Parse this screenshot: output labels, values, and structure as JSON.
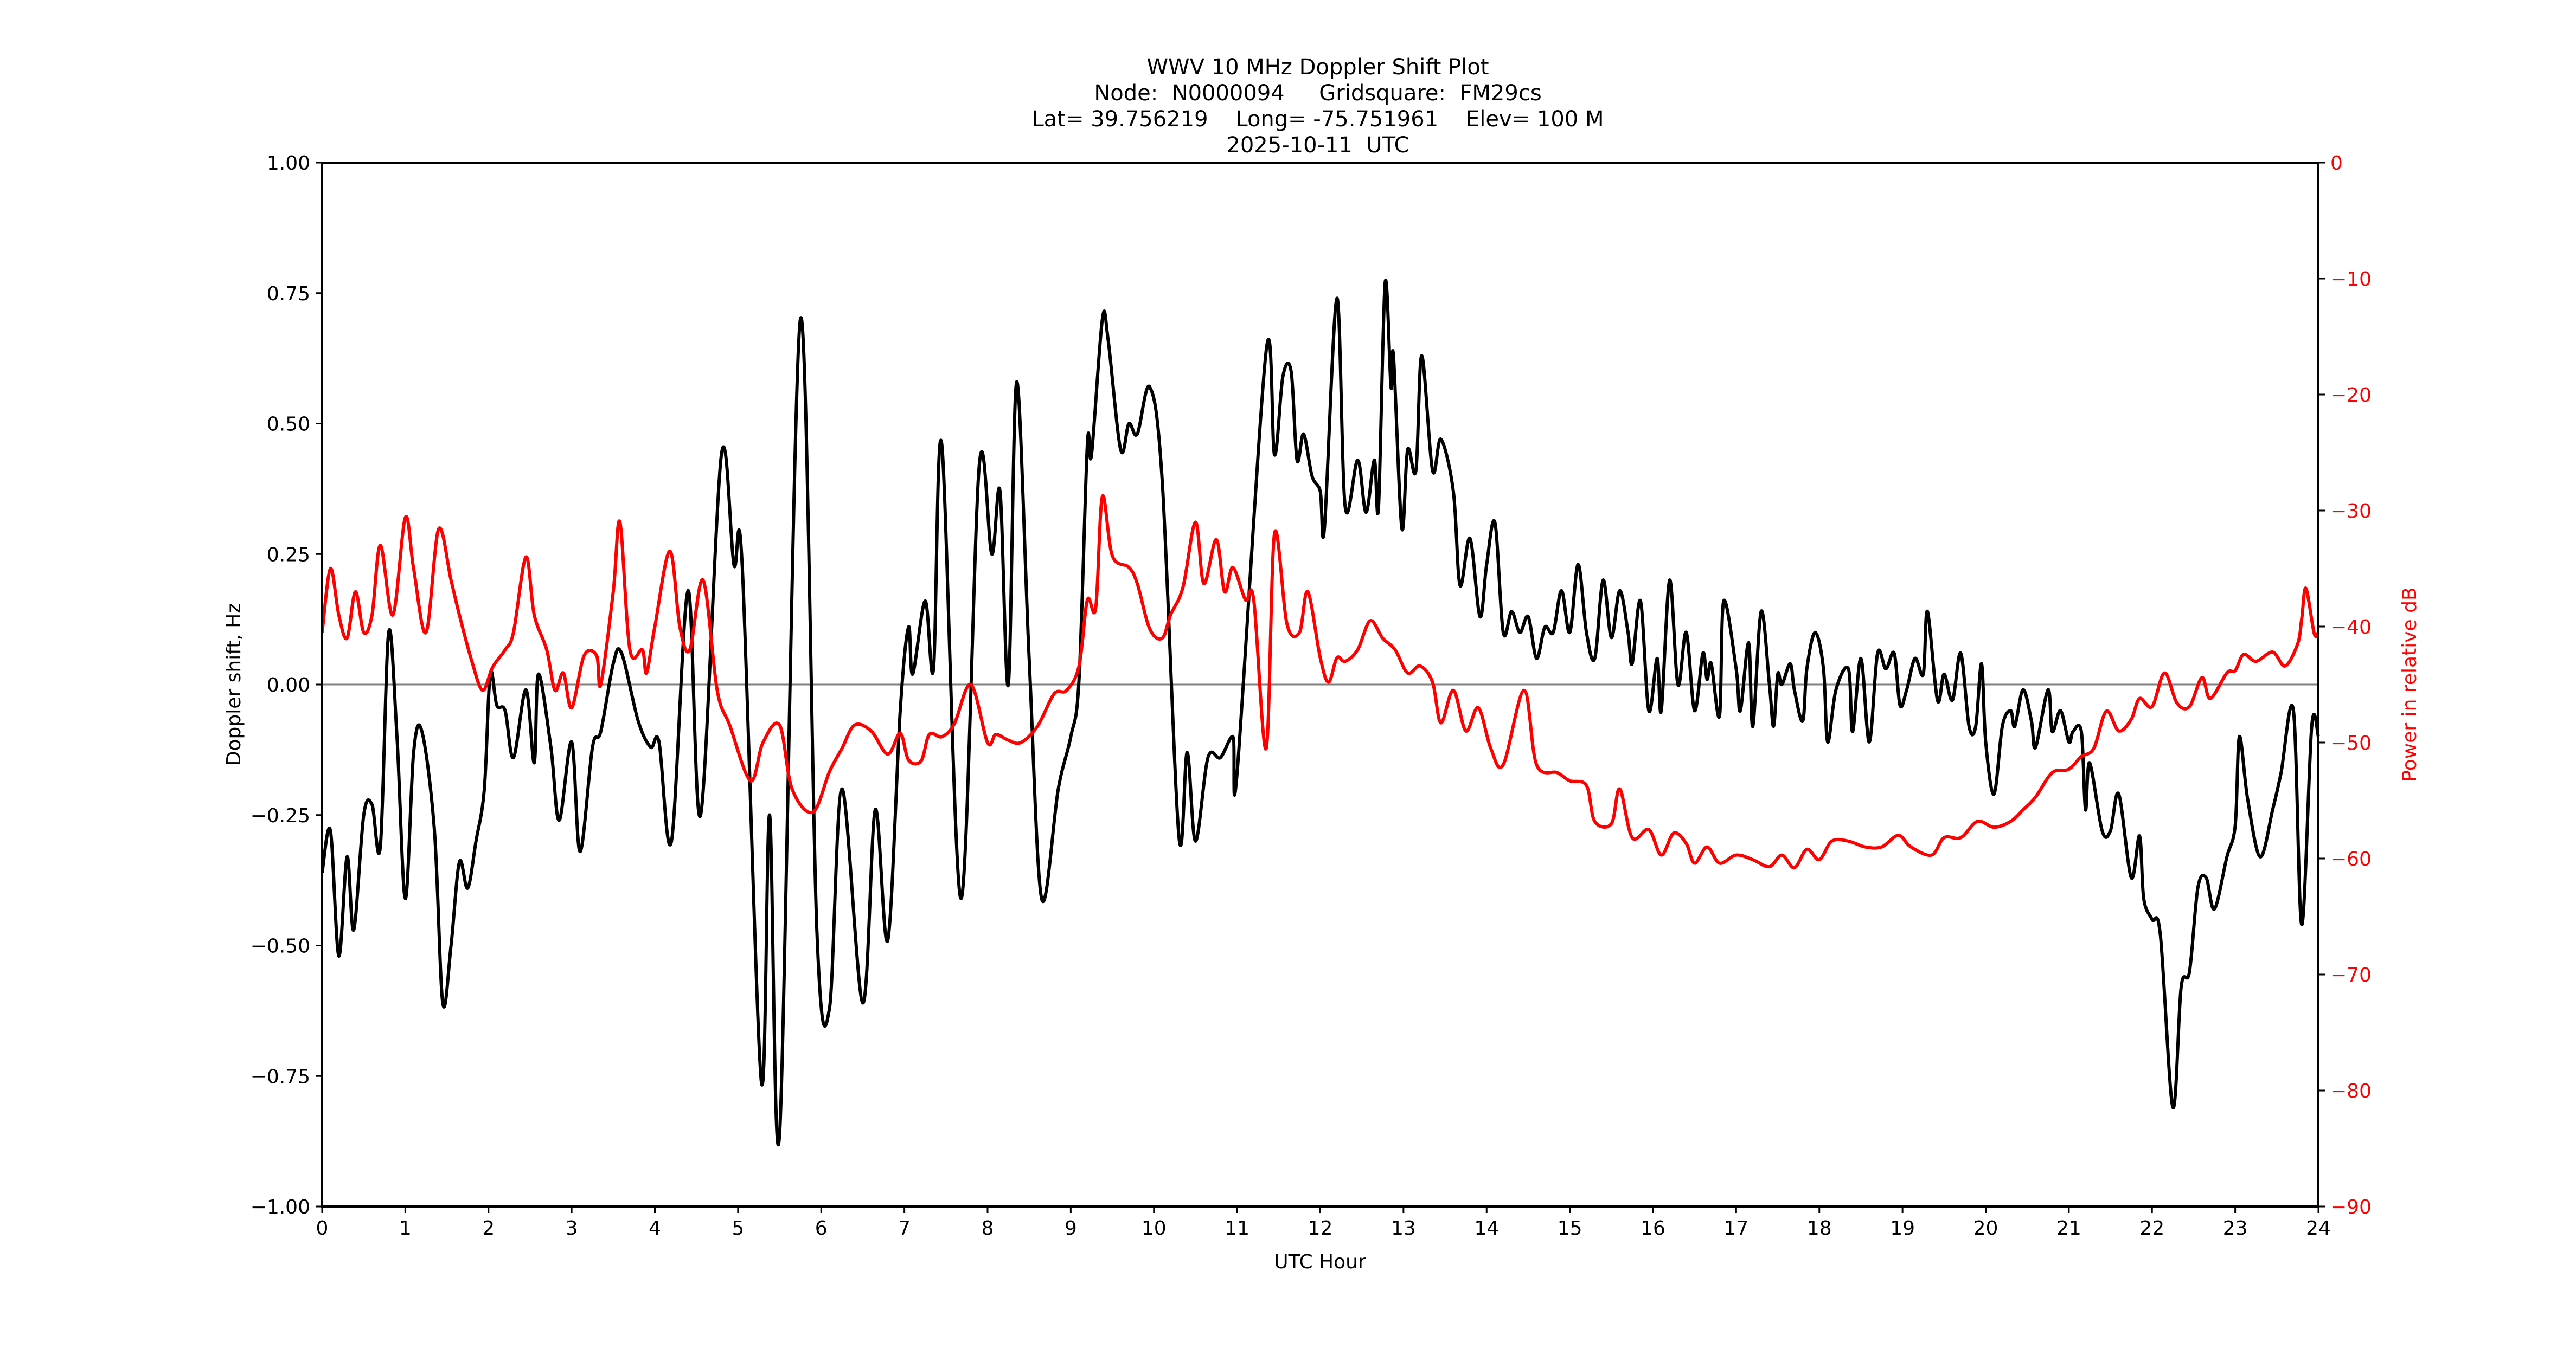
{
  "figure": {
    "title_lines": [
      "WWV 10 MHz Doppler Shift Plot",
      "Node:  N0000094     Gridsquare:  FM29cs",
      "Lat= 39.756219    Long= -75.751961    Elev= 100 M",
      "2025-10-11  UTC"
    ],
    "xlabel": "UTC Hour",
    "ylabel_left": "Doppler shift, Hz",
    "ylabel_right": "Power in relative dB",
    "colors": {
      "doppler": "#000000",
      "power": "#ff0000",
      "zero_line": "#808080",
      "right_axis": "#ff0000"
    }
  },
  "chart_data": {
    "type": "line",
    "title": "WWV 10 MHz Doppler Shift Plot — Node: N0000094  Gridsquare: FM29cs — Lat= 39.756219 Long= -75.751961 Elev= 100 M — 2025-10-11 UTC",
    "xlabel": "UTC Hour",
    "ylabel": "Doppler shift, Hz",
    "ylabel_right": "Power in relative dB",
    "xlim": [
      0,
      24
    ],
    "ylim": [
      -1.0,
      1.0
    ],
    "ylim_right": [
      -90,
      0
    ],
    "xticks": [
      "0",
      "1",
      "2",
      "3",
      "4",
      "5",
      "6",
      "7",
      "8",
      "9",
      "10",
      "11",
      "12",
      "13",
      "14",
      "15",
      "16",
      "17",
      "18",
      "19",
      "20",
      "21",
      "22",
      "23",
      "24"
    ],
    "yticks_left": [
      "1.00",
      "0.75",
      "0.50",
      "0.25",
      "0.00",
      "−0.25",
      "−0.50",
      "−0.75",
      "−1.00"
    ],
    "yticks_right": [
      "0",
      "−10",
      "−20",
      "−30",
      "−40",
      "−50",
      "−60",
      "−70",
      "−80",
      "−90"
    ],
    "grid": false,
    "reference_line": {
      "y": 0.0,
      "color": "#808080"
    },
    "series": [
      {
        "name": "Doppler shift",
        "axis": "left",
        "color": "#000000",
        "x": [
          0,
          0.1,
          0.2,
          0.3,
          0.38,
          0.5,
          0.6,
          0.7,
          0.8,
          0.9,
          1.0,
          1.1,
          1.2,
          1.35,
          1.45,
          1.55,
          1.65,
          1.75,
          1.85,
          1.95,
          2.02,
          2.1,
          2.2,
          2.3,
          2.45,
          2.55,
          2.6,
          2.75,
          2.85,
          3.0,
          3.1,
          3.25,
          3.35,
          3.5,
          3.6,
          3.8,
          3.95,
          4.05,
          4.2,
          4.4,
          4.55,
          4.8,
          4.95,
          5.05,
          5.28,
          5.38,
          5.5,
          5.75,
          5.95,
          6.1,
          6.25,
          6.5,
          6.65,
          6.8,
          6.95,
          7.05,
          7.1,
          7.25,
          7.35,
          7.45,
          7.68,
          7.9,
          8.05,
          8.15,
          8.25,
          8.35,
          8.5,
          8.65,
          8.85,
          9.0,
          9.1,
          9.2,
          9.25,
          9.38,
          9.45,
          9.6,
          9.7,
          9.8,
          9.95,
          10.1,
          10.3,
          10.4,
          10.5,
          10.65,
          10.8,
          10.95,
          11.0,
          11.35,
          11.45,
          11.55,
          11.65,
          11.72,
          11.8,
          11.9,
          12.0,
          12.05,
          12.2,
          12.3,
          12.45,
          12.55,
          12.65,
          12.7,
          12.78,
          12.85,
          12.88,
          12.98,
          13.05,
          13.15,
          13.22,
          13.35,
          13.45,
          13.6,
          13.68,
          13.8,
          13.92,
          14.0,
          14.1,
          14.2,
          14.3,
          14.4,
          14.5,
          14.6,
          14.7,
          14.8,
          14.9,
          15.0,
          15.1,
          15.2,
          15.3,
          15.4,
          15.5,
          15.6,
          15.7,
          15.75,
          15.85,
          15.95,
          16.05,
          16.1,
          16.2,
          16.3,
          16.4,
          16.5,
          16.6,
          16.65,
          16.7,
          16.8,
          16.85,
          17.0,
          17.05,
          17.15,
          17.2,
          17.3,
          17.4,
          17.45,
          17.5,
          17.55,
          17.65,
          17.7,
          17.8,
          17.85,
          17.95,
          18.05,
          18.1,
          18.2,
          18.35,
          18.4,
          18.5,
          18.6,
          18.7,
          18.8,
          18.9,
          18.97,
          19.05,
          19.15,
          19.25,
          19.3,
          19.42,
          19.5,
          19.6,
          19.7,
          19.8,
          19.88,
          19.95,
          20.0,
          20.1,
          20.2,
          20.3,
          20.35,
          20.45,
          20.55,
          20.6,
          20.75,
          20.8,
          20.9,
          21.0,
          21.05,
          21.15,
          21.2,
          21.25,
          21.4,
          21.5,
          21.6,
          21.75,
          21.85,
          21.9,
          22.0,
          22.1,
          22.25,
          22.35,
          22.45,
          22.55,
          22.65,
          22.75,
          22.9,
          23.0,
          23.05,
          23.15,
          23.3,
          23.45,
          23.55,
          23.7,
          23.8,
          23.92,
          24.0
        ],
        "values": [
          -0.36,
          -0.28,
          -0.52,
          -0.33,
          -0.47,
          -0.25,
          -0.23,
          -0.31,
          0.1,
          -0.1,
          -0.41,
          -0.13,
          -0.09,
          -0.28,
          -0.61,
          -0.5,
          -0.34,
          -0.39,
          -0.3,
          -0.2,
          0.02,
          -0.04,
          -0.05,
          -0.14,
          -0.01,
          -0.15,
          0.02,
          -0.12,
          -0.26,
          -0.11,
          -0.32,
          -0.12,
          -0.09,
          0.04,
          0.06,
          -0.07,
          -0.12,
          -0.11,
          -0.3,
          0.18,
          -0.25,
          0.44,
          0.23,
          0.23,
          -0.76,
          -0.25,
          -0.86,
          0.7,
          -0.48,
          -0.62,
          -0.2,
          -0.61,
          -0.24,
          -0.49,
          -0.05,
          0.11,
          0.02,
          0.16,
          0.03,
          0.46,
          -0.41,
          0.42,
          0.25,
          0.37,
          0.0,
          0.58,
          0.05,
          -0.41,
          -0.2,
          -0.1,
          0.01,
          0.46,
          0.44,
          0.7,
          0.66,
          0.45,
          0.5,
          0.48,
          0.57,
          0.39,
          -0.29,
          -0.13,
          -0.3,
          -0.14,
          -0.14,
          -0.1,
          -0.17,
          0.64,
          0.44,
          0.59,
          0.6,
          0.43,
          0.48,
          0.4,
          0.37,
          0.3,
          0.74,
          0.34,
          0.43,
          0.33,
          0.43,
          0.34,
          0.77,
          0.57,
          0.63,
          0.3,
          0.45,
          0.41,
          0.63,
          0.41,
          0.47,
          0.37,
          0.19,
          0.28,
          0.13,
          0.23,
          0.31,
          0.1,
          0.14,
          0.1,
          0.13,
          0.05,
          0.11,
          0.1,
          0.18,
          0.1,
          0.23,
          0.1,
          0.05,
          0.2,
          0.09,
          0.18,
          0.1,
          0.04,
          0.16,
          -0.05,
          0.05,
          -0.05,
          0.2,
          0.0,
          0.1,
          -0.05,
          0.06,
          0.01,
          0.04,
          -0.06,
          0.16,
          0.03,
          -0.05,
          0.08,
          -0.08,
          0.14,
          0.0,
          -0.08,
          0.02,
          0.0,
          0.04,
          -0.01,
          -0.07,
          0.03,
          0.1,
          0.03,
          -0.11,
          -0.01,
          0.03,
          -0.09,
          0.05,
          -0.11,
          0.06,
          0.03,
          0.06,
          -0.04,
          -0.01,
          0.05,
          0.02,
          0.14,
          -0.03,
          0.02,
          -0.03,
          0.06,
          -0.08,
          -0.08,
          0.04,
          -0.11,
          -0.21,
          -0.08,
          -0.05,
          -0.08,
          -0.01,
          -0.07,
          -0.12,
          -0.01,
          -0.09,
          -0.05,
          -0.11,
          -0.09,
          -0.09,
          -0.24,
          -0.15,
          -0.28,
          -0.28,
          -0.21,
          -0.37,
          -0.29,
          -0.41,
          -0.45,
          -0.48,
          -0.81,
          -0.58,
          -0.55,
          -0.39,
          -0.37,
          -0.43,
          -0.33,
          -0.27,
          -0.1,
          -0.22,
          -0.33,
          -0.24,
          -0.17,
          -0.05,
          -0.46,
          -0.08,
          -0.1
        ]
      },
      {
        "name": "Power",
        "axis": "right",
        "color": "#ff0000",
        "x": [
          0,
          0.1,
          0.2,
          0.3,
          0.4,
          0.5,
          0.6,
          0.7,
          0.85,
          1.0,
          1.1,
          1.25,
          1.4,
          1.55,
          1.65,
          1.8,
          1.93,
          2.05,
          2.2,
          2.3,
          2.45,
          2.55,
          2.7,
          2.8,
          2.9,
          3.0,
          3.15,
          3.3,
          3.35,
          3.5,
          3.58,
          3.7,
          3.85,
          3.9,
          4.0,
          4.18,
          4.3,
          4.42,
          4.58,
          4.75,
          4.9,
          5.15,
          5.3,
          5.5,
          5.65,
          5.9,
          6.1,
          6.25,
          6.4,
          6.6,
          6.8,
          6.95,
          7.05,
          7.2,
          7.3,
          7.45,
          7.6,
          7.8,
          8.0,
          8.1,
          8.25,
          8.4,
          8.6,
          8.8,
          8.95,
          9.1,
          9.2,
          9.3,
          9.38,
          9.5,
          9.7,
          9.8,
          9.95,
          10.1,
          10.2,
          10.35,
          10.5,
          10.6,
          10.75,
          10.85,
          10.95,
          11.1,
          11.2,
          11.35,
          11.45,
          11.6,
          11.75,
          11.85,
          12.0,
          12.1,
          12.2,
          12.3,
          12.45,
          12.6,
          12.75,
          12.9,
          13.05,
          13.2,
          13.35,
          13.45,
          13.6,
          13.75,
          13.9,
          14.05,
          14.2,
          14.45,
          14.6,
          14.85,
          15.0,
          15.2,
          15.3,
          15.5,
          15.6,
          15.75,
          15.95,
          16.1,
          16.25,
          16.4,
          16.5,
          16.65,
          16.8,
          17.0,
          17.2,
          17.4,
          17.55,
          17.7,
          17.85,
          18.0,
          18.15,
          18.35,
          18.55,
          18.75,
          18.95,
          19.1,
          19.35,
          19.5,
          19.7,
          19.9,
          20.1,
          20.3,
          20.45,
          20.6,
          20.8,
          21.0,
          21.15,
          21.3,
          21.45,
          21.6,
          21.75,
          21.85,
          22.0,
          22.15,
          22.3,
          22.45,
          22.6,
          22.7,
          22.9,
          23.0,
          23.1,
          23.25,
          23.45,
          23.6,
          23.75,
          23.8,
          23.85,
          23.95,
          24.0
        ],
        "values": [
          -40.5,
          -35,
          -39,
          -41,
          -37,
          -40.5,
          -39,
          -33,
          -39,
          -30.6,
          -35,
          -40.5,
          -31.6,
          -36,
          -39,
          -43,
          -45.5,
          -43.5,
          -42,
          -40.5,
          -34,
          -39,
          -42,
          -45.5,
          -44,
          -47,
          -42.5,
          -42.5,
          -45,
          -37,
          -31,
          -42,
          -42,
          -44,
          -40,
          -33.5,
          -40,
          -42,
          -36,
          -45.5,
          -48.5,
          -53.3,
          -50,
          -48.5,
          -54,
          -56,
          -52.5,
          -50.5,
          -48.5,
          -49,
          -51,
          -49.2,
          -51.5,
          -51.6,
          -49.3,
          -49.5,
          -48.4,
          -45,
          -50,
          -49.3,
          -49.8,
          -50,
          -48.6,
          -45.8,
          -45.5,
          -43.4,
          -37.7,
          -38.4,
          -28.8,
          -33.9,
          -34.9,
          -36.3,
          -40.2,
          -41,
          -39,
          -36.6,
          -31,
          -36.3,
          -32.5,
          -37,
          -34.9,
          -37.7,
          -37.7,
          -50.5,
          -32,
          -39.8,
          -40.5,
          -37,
          -42.7,
          -44.8,
          -42.7,
          -43,
          -42,
          -39.5,
          -41,
          -42,
          -44,
          -43.4,
          -44.8,
          -48.3,
          -45.5,
          -49,
          -47,
          -50.5,
          -51.9,
          -45.5,
          -51.9,
          -52.6,
          -53.3,
          -53.7,
          -56.8,
          -57,
          -54,
          -58.2,
          -57.5,
          -59.7,
          -57.8,
          -58.7,
          -60.4,
          -59,
          -60.4,
          -59.7,
          -60.1,
          -60.7,
          -59.7,
          -60.8,
          -59.2,
          -60.1,
          -58.5,
          -58.5,
          -59,
          -59,
          -58,
          -59,
          -59.7,
          -58.2,
          -58.2,
          -56.8,
          -57.3,
          -56.8,
          -55.8,
          -54.7,
          -52.6,
          -52.3,
          -51.2,
          -50.5,
          -47.3,
          -49,
          -48,
          -46.2,
          -46.9,
          -44,
          -46.6,
          -46.9,
          -44.4,
          -46.2,
          -44,
          -43.8,
          -42.4,
          -43,
          -42.2,
          -43.4,
          -41.5,
          -39.3,
          -36.7,
          -40.6,
          -40.5
        ]
      }
    ]
  }
}
